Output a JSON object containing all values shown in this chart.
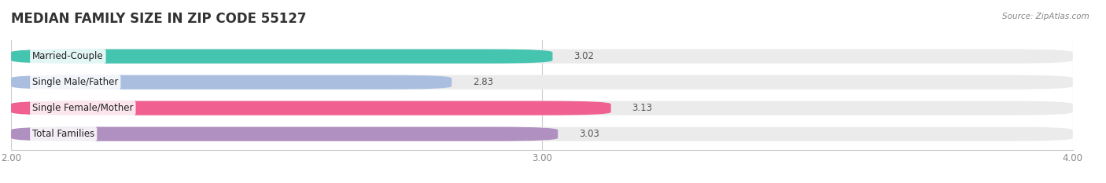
{
  "title": "MEDIAN FAMILY SIZE IN ZIP CODE 55127",
  "source": "Source: ZipAtlas.com",
  "categories": [
    "Married-Couple",
    "Single Male/Father",
    "Single Female/Mother",
    "Total Families"
  ],
  "values": [
    3.02,
    2.83,
    3.13,
    3.03
  ],
  "bar_colors": [
    "#45C4B0",
    "#AABFDF",
    "#F06090",
    "#B090C0"
  ],
  "background_color": "#ffffff",
  "bar_bg_color": "#ebebeb",
  "xlim": [
    2.0,
    4.0
  ],
  "xticks": [
    2.0,
    3.0,
    4.0
  ],
  "xtick_labels": [
    "2.00",
    "3.00",
    "4.00"
  ],
  "label_fontsize": 8.5,
  "value_fontsize": 8.5,
  "title_fontsize": 12,
  "source_fontsize": 7.5
}
